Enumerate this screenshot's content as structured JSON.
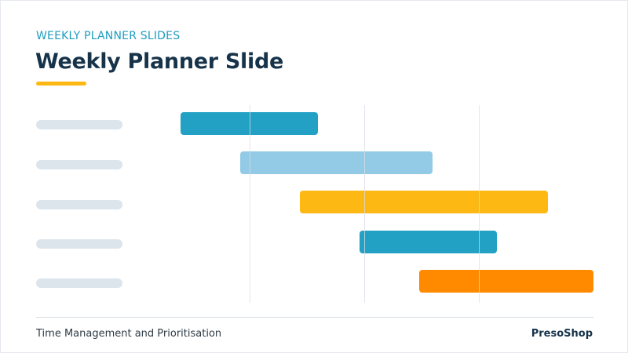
{
  "header": {
    "subtitle": "WEEKLY PLANNER SLIDES",
    "title": "Weekly Planner Slide"
  },
  "footer": {
    "left_text": "Time Management and Prioritisation",
    "brand": "PresoShop"
  },
  "colors": {
    "accent_teal": "#22a1c4",
    "light_blue": "#93cbe6",
    "yellow": "#fdb813",
    "orange": "#ff8a00",
    "title_dark": "#16334a",
    "placeholder_gray": "#dde5ec"
  },
  "chart_data": {
    "type": "gantt",
    "rows": 5,
    "tasks": [
      {
        "start": 0.0,
        "end": 1.2,
        "color": "#22a1c4"
      },
      {
        "start": 0.52,
        "end": 2.2,
        "color": "#93cbe6"
      },
      {
        "start": 1.04,
        "end": 3.2,
        "color": "#fdb813"
      },
      {
        "start": 1.56,
        "end": 2.76,
        "color": "#22a1c4"
      },
      {
        "start": 2.08,
        "end": 3.6,
        "color": "#ff8a00"
      }
    ],
    "xlim": [
      0,
      3.6
    ],
    "gridlines_at": [
      0.6,
      1.6,
      2.6
    ]
  }
}
